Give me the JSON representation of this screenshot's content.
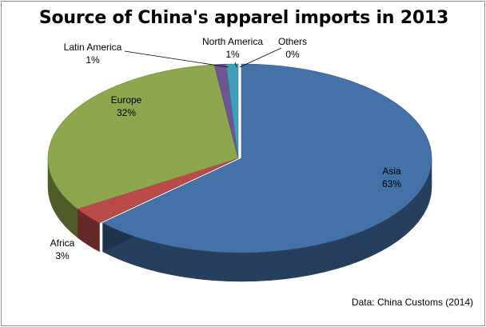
{
  "chart_data": {
    "type": "pie",
    "title": "Source of China's apparel imports in 2013",
    "source_note": "Data: China Customs (2014)",
    "slices": [
      {
        "label": "Asia",
        "value": 63,
        "value_label": "63%",
        "color": "#4472a8"
      },
      {
        "label": "Africa",
        "value": 3,
        "value_label": "3%",
        "color": "#b94a48"
      },
      {
        "label": "Europe",
        "value": 32,
        "value_label": "32%",
        "color": "#8ea64d"
      },
      {
        "label": "Latin America",
        "value": 1,
        "value_label": "1%",
        "color": "#6e5594"
      },
      {
        "label": "North America",
        "value": 1,
        "value_label": "1%",
        "color": "#3f9fb8"
      },
      {
        "label": "Others",
        "value": 0,
        "value_label": "0%",
        "color": "#e69a3a"
      }
    ],
    "style": "3d-exploded-pie"
  }
}
